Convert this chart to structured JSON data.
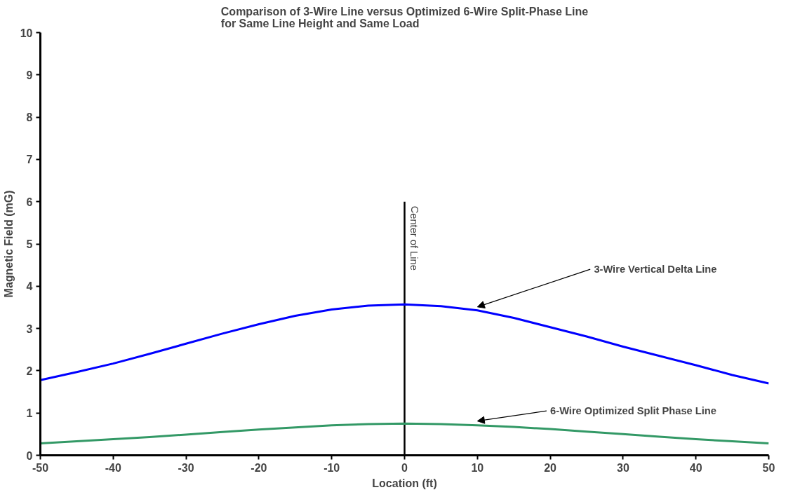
{
  "chart_data": {
    "type": "line",
    "title": "Comparison of 3-Wire Line versus Optimized 6-Wire Split-Phase Line\nfor Same Line Height and Same Load",
    "xlabel": "Location (ft)",
    "ylabel": "Magnetic Field (mG)",
    "x": [
      -50,
      -45,
      -40,
      -35,
      -30,
      -25,
      -20,
      -15,
      -10,
      -5,
      0,
      5,
      10,
      15,
      20,
      25,
      30,
      35,
      40,
      45,
      50
    ],
    "series": [
      {
        "name": "3-Wire Vertical Delta Line",
        "color": "#0000ff",
        "values": [
          1.78,
          1.97,
          2.17,
          2.4,
          2.64,
          2.88,
          3.1,
          3.3,
          3.45,
          3.54,
          3.57,
          3.53,
          3.43,
          3.25,
          3.03,
          2.81,
          2.57,
          2.35,
          2.13,
          1.9,
          1.7
        ]
      },
      {
        "name": "6-Wire Optimized Split Phase Line",
        "color": "#339966",
        "values": [
          0.28,
          0.33,
          0.38,
          0.43,
          0.49,
          0.55,
          0.61,
          0.66,
          0.71,
          0.74,
          0.75,
          0.74,
          0.71,
          0.67,
          0.62,
          0.56,
          0.5,
          0.44,
          0.38,
          0.33,
          0.28
        ]
      }
    ],
    "ref_lines": [
      {
        "axis": "x",
        "value": 0,
        "label": "Center of Line",
        "color": "#000000"
      }
    ],
    "xlim": [
      -50,
      50
    ],
    "xticks": [
      -50,
      -40,
      -30,
      -20,
      -10,
      0,
      10,
      20,
      30,
      40,
      50
    ],
    "ylim": [
      0,
      10
    ],
    "yticks": [
      0,
      1,
      2,
      3,
      4,
      5,
      6,
      7,
      8,
      9,
      10
    ],
    "grid": false,
    "marker": "none",
    "line_style": "solid"
  }
}
